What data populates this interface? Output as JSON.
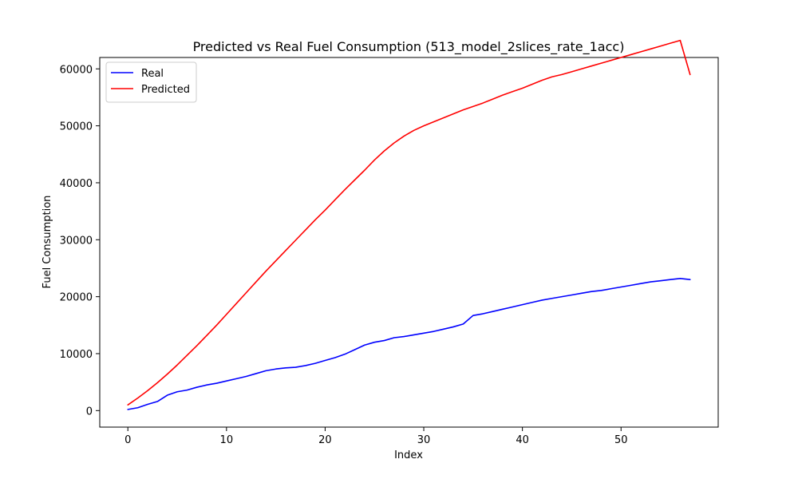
{
  "chart_data": {
    "type": "line",
    "title": "Predicted vs Real Fuel Consumption (513_model_2slices_rate_1acc)",
    "xlabel": "Index",
    "ylabel": "Fuel Consumption",
    "xlim": [
      -2.85,
      59.85
    ],
    "ylim": [
      -2900,
      62000
    ],
    "xticks": [
      0,
      10,
      20,
      30,
      40,
      50
    ],
    "yticks": [
      0,
      10000,
      20000,
      30000,
      40000,
      50000,
      60000
    ],
    "grid": false,
    "legend": {
      "position": "top-left",
      "entries": [
        "Real",
        "Predicted"
      ]
    },
    "x": [
      0,
      1,
      2,
      3,
      4,
      5,
      6,
      7,
      8,
      9,
      10,
      11,
      12,
      13,
      14,
      15,
      16,
      17,
      18,
      19,
      20,
      21,
      22,
      23,
      24,
      25,
      26,
      27,
      28,
      29,
      30,
      31,
      32,
      33,
      34,
      35,
      36,
      37,
      38,
      39,
      40,
      41,
      42,
      43,
      44,
      45,
      46,
      47,
      48,
      49,
      50,
      51,
      52,
      53,
      54,
      55,
      56,
      57
    ],
    "series": [
      {
        "name": "Real",
        "color": "#0000ff",
        "values": [
          200,
          500,
          1100,
          1600,
          2700,
          3300,
          3600,
          4100,
          4500,
          4800,
          5200,
          5600,
          6000,
          6500,
          7000,
          7300,
          7500,
          7600,
          7900,
          8300,
          8800,
          9300,
          9900,
          10700,
          11500,
          12000,
          12300,
          12800,
          13000,
          13300,
          13600,
          13900,
          14300,
          14700,
          15200,
          16700,
          17000,
          17400,
          17800,
          18200,
          18600,
          19000,
          19400,
          19700,
          20000,
          20300,
          20600,
          20900,
          21100,
          21400,
          21700,
          22000,
          22300,
          22600,
          22800,
          23000,
          23200,
          23000
        ]
      },
      {
        "name": "Predicted",
        "color": "#ff0000",
        "values": [
          1000,
          2200,
          3500,
          4900,
          6400,
          8000,
          9700,
          11400,
          13200,
          15000,
          16900,
          18800,
          20700,
          22600,
          24500,
          26300,
          28100,
          29900,
          31700,
          33500,
          35200,
          37000,
          38800,
          40500,
          42200,
          44000,
          45600,
          47000,
          48200,
          49200,
          50000,
          50700,
          51400,
          52100,
          52800,
          53400,
          54000,
          54700,
          55400,
          56000,
          56600,
          57300,
          58000,
          58600,
          59000,
          59500,
          60000,
          60500,
          61000,
          61500,
          62000,
          62500,
          63000,
          63500,
          64000,
          64500,
          65000,
          59000
        ]
      }
    ]
  }
}
